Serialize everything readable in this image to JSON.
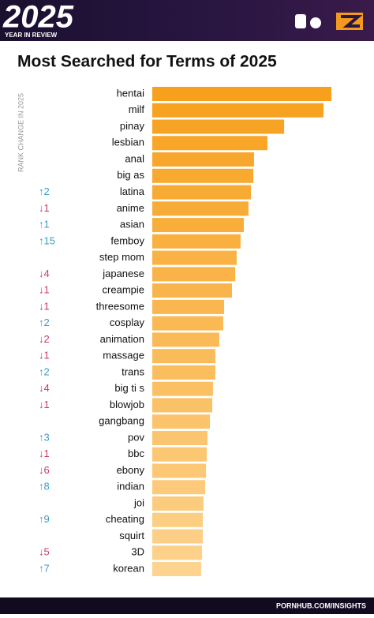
{
  "header": {
    "year": "2025",
    "subtitle": "YEAR IN REVIEW"
  },
  "chart_data": {
    "type": "bar",
    "orientation": "horizontal",
    "title": "Most Searched for Terms of 2025",
    "rank_axis_label": "RANK CHANGE IN 2025",
    "categories": [
      "hentai",
      "milf",
      "pinay",
      "lesbian",
      "anal",
      "big as",
      "latina",
      "anime",
      "asian",
      "femboy",
      "step mom",
      "japanese",
      "creampie",
      "threesome",
      "cosplay",
      "animation",
      "massage",
      "trans",
      "big ti s",
      "blowjob",
      "gangbang",
      "pov",
      "bbc",
      "ebony",
      "indian",
      "joi",
      "cheating",
      "squirt",
      "3D",
      "korean"
    ],
    "rank_changes": [
      null,
      null,
      null,
      null,
      null,
      null,
      "↑2",
      "↓1",
      "↑1",
      "↑15",
      null,
      "↓4",
      "↓1",
      "↓1",
      "↑2",
      "↓2",
      "↓1",
      "↑2",
      "↓4",
      "↓1",
      null,
      "↑3",
      "↓1",
      "↓6",
      "↑8",
      null,
      "↑9",
      null,
      "↓5",
      "↑7"
    ],
    "values": [
      100,
      95.6,
      73.6,
      64.3,
      56.8,
      56.4,
      55.1,
      53.7,
      51.1,
      49.3,
      47.1,
      46.3,
      44.5,
      40.1,
      39.6,
      37.4,
      35.2,
      35.2,
      33.9,
      33.5,
      32.2,
      30.8,
      30.4,
      30,
      29.5,
      28.6,
      28.2,
      28.2,
      27.8,
      27.3
    ],
    "xlim": [
      0,
      100
    ],
    "color": "#f7a01c",
    "color_end": "#fdd38e",
    "up_color": "#3a9dc4",
    "down_color": "#c93c5e"
  },
  "footer": {
    "source": "PORNHUB.COM/INSIGHTS"
  }
}
